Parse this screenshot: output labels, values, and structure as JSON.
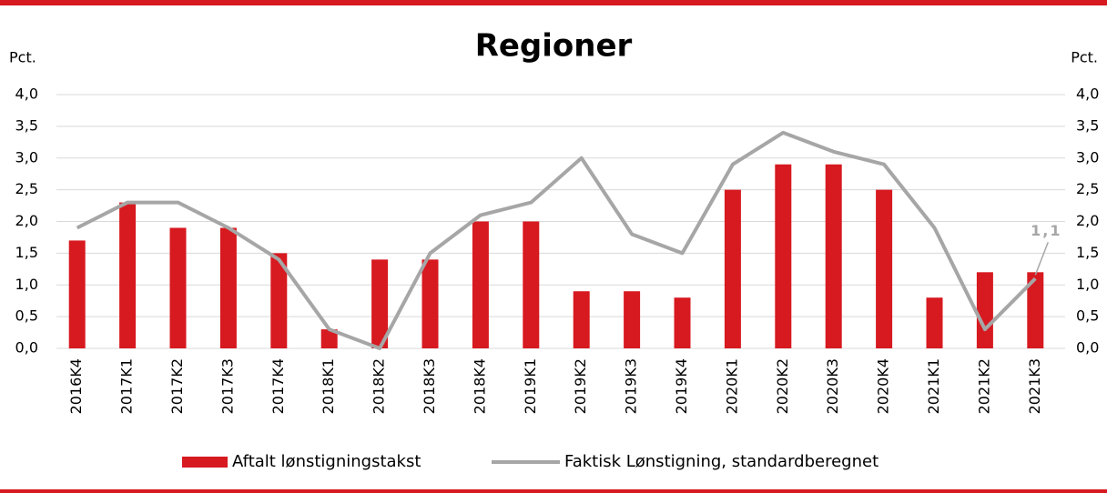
{
  "chart_data": {
    "type": "bar-line",
    "title": "Regioner",
    "y_label": "Pct.",
    "y2_label": "Pct.",
    "categories": [
      "2016K4",
      "2017K1",
      "2017K2",
      "2017K3",
      "2017K4",
      "2018K1",
      "2018K2",
      "2018K3",
      "2018K4",
      "2019K1",
      "2019K2",
      "2019K3",
      "2019K4",
      "2020K1",
      "2020K2",
      "2020K3",
      "2020K4",
      "2021K1",
      "2021K2",
      "2021K3"
    ],
    "series": [
      {
        "name": "Aftalt lønstigningstakst",
        "type": "bar",
        "color": "#d71920",
        "values": [
          1.7,
          2.3,
          1.9,
          1.9,
          1.5,
          0.3,
          1.4,
          1.4,
          2.0,
          2.0,
          0.9,
          0.9,
          0.8,
          2.5,
          2.9,
          2.9,
          2.5,
          0.8,
          1.2,
          1.2
        ]
      },
      {
        "name": "Faktisk Lønstigning, standardberegnet",
        "type": "line",
        "color": "#a6a6a6",
        "axis": "y2",
        "values": [
          1.9,
          2.3,
          2.3,
          1.9,
          1.4,
          0.3,
          0.0,
          1.5,
          2.1,
          2.3,
          3.0,
          1.8,
          1.5,
          2.9,
          3.4,
          3.1,
          2.9,
          1.9,
          0.3,
          1.1
        ],
        "value_labels": [
          null,
          null,
          null,
          null,
          null,
          null,
          null,
          null,
          null,
          null,
          null,
          null,
          null,
          null,
          null,
          null,
          null,
          null,
          null,
          "1,1"
        ]
      }
    ],
    "ylim": [
      0,
      4
    ],
    "yticks": [
      {
        "value": 0,
        "label": "0,0"
      },
      {
        "value": 0.5,
        "label": "0,5"
      },
      {
        "value": 1,
        "label": "1,0"
      },
      {
        "value": 1.5,
        "label": "1,5"
      },
      {
        "value": 2,
        "label": "2,0"
      },
      {
        "value": 2.5,
        "label": "2,5"
      },
      {
        "value": 3,
        "label": "3,0"
      },
      {
        "value": 3.5,
        "label": "3,5"
      },
      {
        "value": 4,
        "label": "4,0"
      }
    ],
    "y2lim": [
      0,
      4
    ],
    "y2ticks": [
      {
        "value": 0,
        "label": "0,0"
      },
      {
        "value": 0.5,
        "label": "0,5"
      },
      {
        "value": 1,
        "label": "1,0"
      },
      {
        "value": 1.5,
        "label": "1,5"
      },
      {
        "value": 2,
        "label": "2,0"
      },
      {
        "value": 2.5,
        "label": "2,5"
      },
      {
        "value": 3,
        "label": "3,0"
      },
      {
        "value": 3.5,
        "label": "3,5"
      },
      {
        "value": 4,
        "label": "4,0"
      }
    ],
    "grid": true,
    "legend": "bottom"
  }
}
